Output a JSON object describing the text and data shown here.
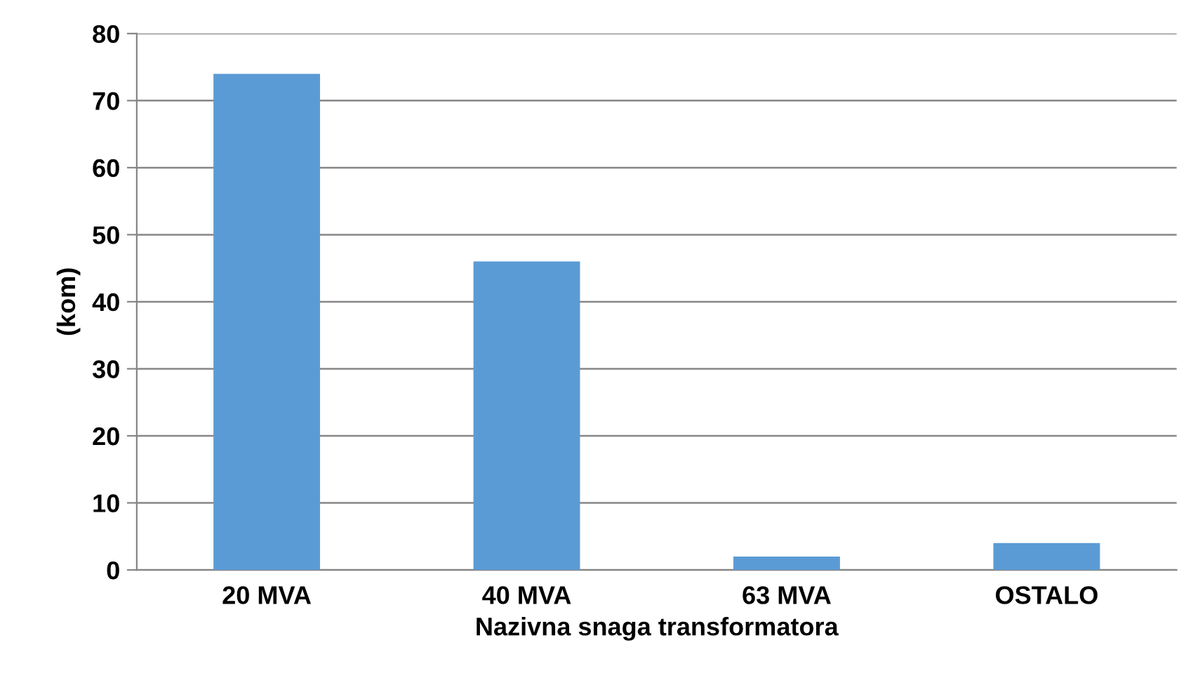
{
  "chart_data": {
    "type": "bar",
    "xlabel": "Nazivna snaga transformatora",
    "ylabel": "(kom)",
    "categories": [
      "20 MVA",
      "40 MVA",
      "63 MVA",
      "OSTALO"
    ],
    "values": [
      74,
      46,
      2,
      4
    ],
    "color": "#5b9bd5",
    "ylim": [
      0,
      80
    ],
    "yticks": [
      0,
      10,
      20,
      30,
      40,
      50,
      60,
      70,
      80
    ],
    "grid": "y"
  }
}
